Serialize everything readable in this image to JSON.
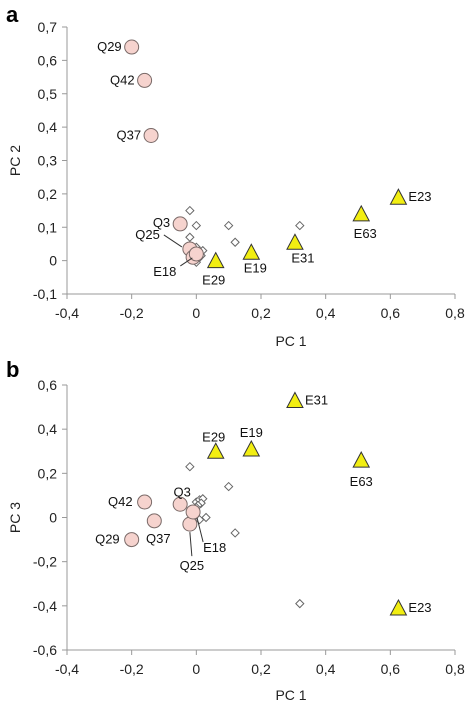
{
  "figure": {
    "panels": [
      "a",
      "b"
    ]
  },
  "chart_data": [
    {
      "panel": "a",
      "type": "scatter",
      "xlabel": "PC 1",
      "ylabel": "PC 2",
      "xlim": [
        -0.4,
        0.8
      ],
      "ylim": [
        -0.1,
        0.7
      ],
      "xticks": [
        -0.4,
        -0.2,
        0,
        0.2,
        0.4,
        0.6,
        0.8
      ],
      "xtick_labels": [
        "-0,4",
        "-0,2",
        "0",
        "0,2",
        "0,4",
        "0,6",
        "0,8"
      ],
      "yticks": [
        -0.1,
        0,
        0.1,
        0.2,
        0.3,
        0.4,
        0.5,
        0.6,
        0.7
      ],
      "ytick_labels": [
        "-0,1",
        "0",
        "0,1",
        "0,2",
        "0,3",
        "0,4",
        "0,5",
        "0,6",
        "0,7"
      ],
      "grid": false,
      "colors": {
        "circle_fill": "#f6d3ce",
        "circle_stroke": "#7a6a68",
        "triangle_fill": "#f2ee12",
        "triangle_stroke": "#333333",
        "diamond_stroke": "#666666"
      },
      "series": [
        {
          "marker": "circle",
          "points": [
            {
              "x": -0.2,
              "y": 0.64,
              "label": "Q29"
            },
            {
              "x": -0.16,
              "y": 0.54,
              "label": "Q42"
            },
            {
              "x": -0.14,
              "y": 0.375,
              "label": "Q37"
            },
            {
              "x": -0.05,
              "y": 0.11,
              "label": "Q3"
            },
            {
              "x": -0.02,
              "y": 0.035,
              "label": "Q25"
            },
            {
              "x": -0.01,
              "y": 0.01,
              "label": ""
            },
            {
              "x": 0.0,
              "y": 0.02,
              "label": "E18"
            }
          ]
        },
        {
          "marker": "triangle",
          "points": [
            {
              "x": 0.06,
              "y": 0.0,
              "label": "E29"
            },
            {
              "x": 0.17,
              "y": 0.025,
              "label": "E19"
            },
            {
              "x": 0.305,
              "y": 0.055,
              "label": "E31"
            },
            {
              "x": 0.51,
              "y": 0.14,
              "label": "E63"
            },
            {
              "x": 0.625,
              "y": 0.19,
              "label": "E23"
            }
          ]
        },
        {
          "marker": "diamond",
          "points": [
            {
              "x": -0.02,
              "y": 0.15
            },
            {
              "x": 0.0,
              "y": 0.105
            },
            {
              "x": -0.02,
              "y": 0.07
            },
            {
              "x": 0.0,
              "y": 0.04
            },
            {
              "x": 0.01,
              "y": 0.025
            },
            {
              "x": 0.015,
              "y": 0.015
            },
            {
              "x": 0.005,
              "y": 0.005
            },
            {
              "x": 0.0,
              "y": -0.005
            },
            {
              "x": 0.02,
              "y": 0.03
            },
            {
              "x": 0.1,
              "y": 0.105
            },
            {
              "x": 0.12,
              "y": 0.055
            },
            {
              "x": 0.32,
              "y": 0.105
            }
          ]
        }
      ]
    },
    {
      "panel": "b",
      "type": "scatter",
      "xlabel": "PC 1",
      "ylabel": "PC 3",
      "xlim": [
        -0.4,
        0.8
      ],
      "ylim": [
        -0.6,
        0.6
      ],
      "xticks": [
        -0.4,
        -0.2,
        0,
        0.2,
        0.4,
        0.6,
        0.8
      ],
      "xtick_labels": [
        "-0,4",
        "-0,2",
        "0",
        "0,2",
        "0,4",
        "0,6",
        "0,8"
      ],
      "yticks": [
        -0.6,
        -0.4,
        -0.2,
        0,
        0.2,
        0.4,
        0.6
      ],
      "ytick_labels": [
        "-0,6",
        "-0,4",
        "-0,2",
        "0",
        "0,2",
        "0,4",
        "0,6"
      ],
      "grid": false,
      "colors": {
        "circle_fill": "#f6d3ce",
        "circle_stroke": "#7a6a68",
        "triangle_fill": "#f2ee12",
        "triangle_stroke": "#333333",
        "diamond_stroke": "#666666"
      },
      "series": [
        {
          "marker": "circle",
          "points": [
            {
              "x": -0.2,
              "y": -0.1,
              "label": "Q29"
            },
            {
              "x": -0.16,
              "y": 0.07,
              "label": "Q42"
            },
            {
              "x": -0.13,
              "y": -0.015,
              "label": "Q37"
            },
            {
              "x": -0.05,
              "y": 0.06,
              "label": "Q3"
            },
            {
              "x": -0.02,
              "y": -0.03,
              "label": "Q25"
            },
            {
              "x": -0.01,
              "y": 0.025,
              "label": "E18"
            }
          ]
        },
        {
          "marker": "triangle",
          "points": [
            {
              "x": 0.06,
              "y": 0.3,
              "label": "E29"
            },
            {
              "x": 0.17,
              "y": 0.31,
              "label": "E19"
            },
            {
              "x": 0.305,
              "y": 0.53,
              "label": "E31"
            },
            {
              "x": 0.51,
              "y": 0.26,
              "label": "E63"
            },
            {
              "x": 0.625,
              "y": -0.41,
              "label": "E23"
            }
          ]
        },
        {
          "marker": "diamond",
          "points": [
            {
              "x": -0.02,
              "y": 0.23
            },
            {
              "x": 0.0,
              "y": 0.07
            },
            {
              "x": 0.01,
              "y": 0.08
            },
            {
              "x": 0.02,
              "y": 0.085
            },
            {
              "x": 0.015,
              "y": 0.065
            },
            {
              "x": 0.005,
              "y": 0.055
            },
            {
              "x": 0.0,
              "y": 0.045
            },
            {
              "x": 0.03,
              "y": 0.0
            },
            {
              "x": 0.01,
              "y": -0.01
            },
            {
              "x": 0.1,
              "y": 0.14
            },
            {
              "x": 0.12,
              "y": -0.07
            },
            {
              "x": 0.32,
              "y": -0.39
            }
          ]
        }
      ]
    }
  ]
}
